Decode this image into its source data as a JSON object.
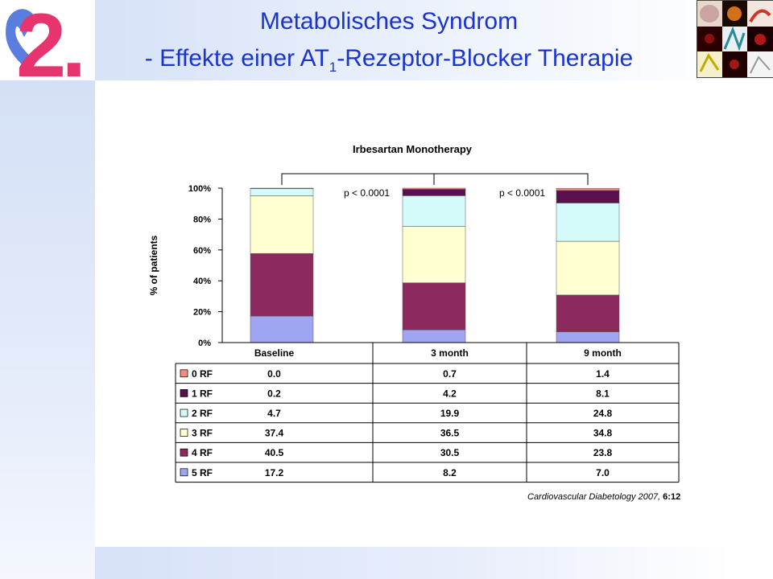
{
  "slide": {
    "title_line1": "Metabolisches Syndrom",
    "title_line2_pre": "- Effekte einer AT",
    "title_line2_sub": "1",
    "title_line2_post": "-Rezeptor-Blocker Therapie",
    "logo_text": "2.",
    "source_text": "Cardiovascular Diabetology",
    "source_year": "2007,",
    "source_ref": "6:12",
    "colors": {
      "title": "#1a35cf",
      "logo": "#e8346e",
      "logo_heart": "#5a7de0"
    }
  },
  "chart_data": {
    "type": "bar",
    "stacked": true,
    "title": "Irbesartan Monotherapy",
    "ylabel": "% of patients",
    "ylim": [
      0,
      100
    ],
    "yticks": [
      "0%",
      "20%",
      "40%",
      "60%",
      "80%",
      "100%"
    ],
    "categories": [
      "Baseline",
      "3 month",
      "9 month"
    ],
    "annotations": [
      "p < 0.0001",
      "p < 0.0001"
    ],
    "series": [
      {
        "name": "5 RF",
        "color": "#9fa5f0",
        "values": [
          17.2,
          8.2,
          7.0
        ],
        "labels": [
          "17.2",
          "8.2",
          "7.0"
        ]
      },
      {
        "name": "4 RF",
        "color": "#8c2a5e",
        "values": [
          40.5,
          30.5,
          23.8
        ],
        "labels": [
          "40.5",
          "30.5",
          "23.8"
        ]
      },
      {
        "name": "3 RF",
        "color": "#ffffd2",
        "values": [
          37.4,
          36.5,
          34.8
        ],
        "labels": [
          "37.4",
          "36.5",
          "34.8"
        ]
      },
      {
        "name": "2 RF",
        "color": "#d4fafa",
        "values": [
          4.7,
          19.9,
          24.8
        ],
        "labels": [
          "4.7",
          "19.9",
          "24.8"
        ]
      },
      {
        "name": "1 RF",
        "color": "#5a0f4f",
        "values": [
          0.2,
          4.2,
          8.1
        ],
        "labels": [
          "0.2",
          "4.2",
          "8.1"
        ]
      },
      {
        "name": "0 RF",
        "color": "#f58a80",
        "values": [
          0.0,
          0.7,
          1.4
        ],
        "labels": [
          "0.0",
          "0.7",
          "1.4"
        ]
      }
    ],
    "table_row_order": [
      "0 RF",
      "1 RF",
      "2 RF",
      "3 RF",
      "4 RF",
      "5 RF"
    ],
    "grid": false,
    "legend_position": "table-left"
  }
}
